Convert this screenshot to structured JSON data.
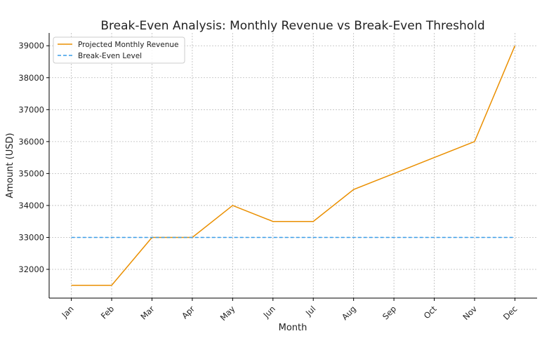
{
  "chart_data": {
    "type": "line",
    "title": "Break-Even Analysis: Monthly Revenue vs Break-Even Threshold",
    "xlabel": "Month",
    "ylabel": "Amount (USD)",
    "categories": [
      "Jan",
      "Feb",
      "Mar",
      "Apr",
      "May",
      "Jun",
      "Jul",
      "Aug",
      "Sep",
      "Oct",
      "Nov",
      "Dec"
    ],
    "series": [
      {
        "name": "Projected Monthly Revenue",
        "values": [
          31500,
          31500,
          33000,
          33000,
          34000,
          33500,
          33500,
          34500,
          35000,
          35500,
          36000,
          39000
        ],
        "color": "#ea8f00",
        "style": "solid"
      },
      {
        "name": "Break-Even Level",
        "values": [
          33000,
          33000,
          33000,
          33000,
          33000,
          33000,
          33000,
          33000,
          33000,
          33000,
          33000,
          33000
        ],
        "color": "#3a9ee8",
        "style": "dashed"
      }
    ],
    "yticks": [
      32000,
      33000,
      34000,
      35000,
      36000,
      37000,
      38000,
      39000
    ],
    "ylim": [
      31100,
      39400
    ],
    "grid": true,
    "legend": "top-left"
  }
}
